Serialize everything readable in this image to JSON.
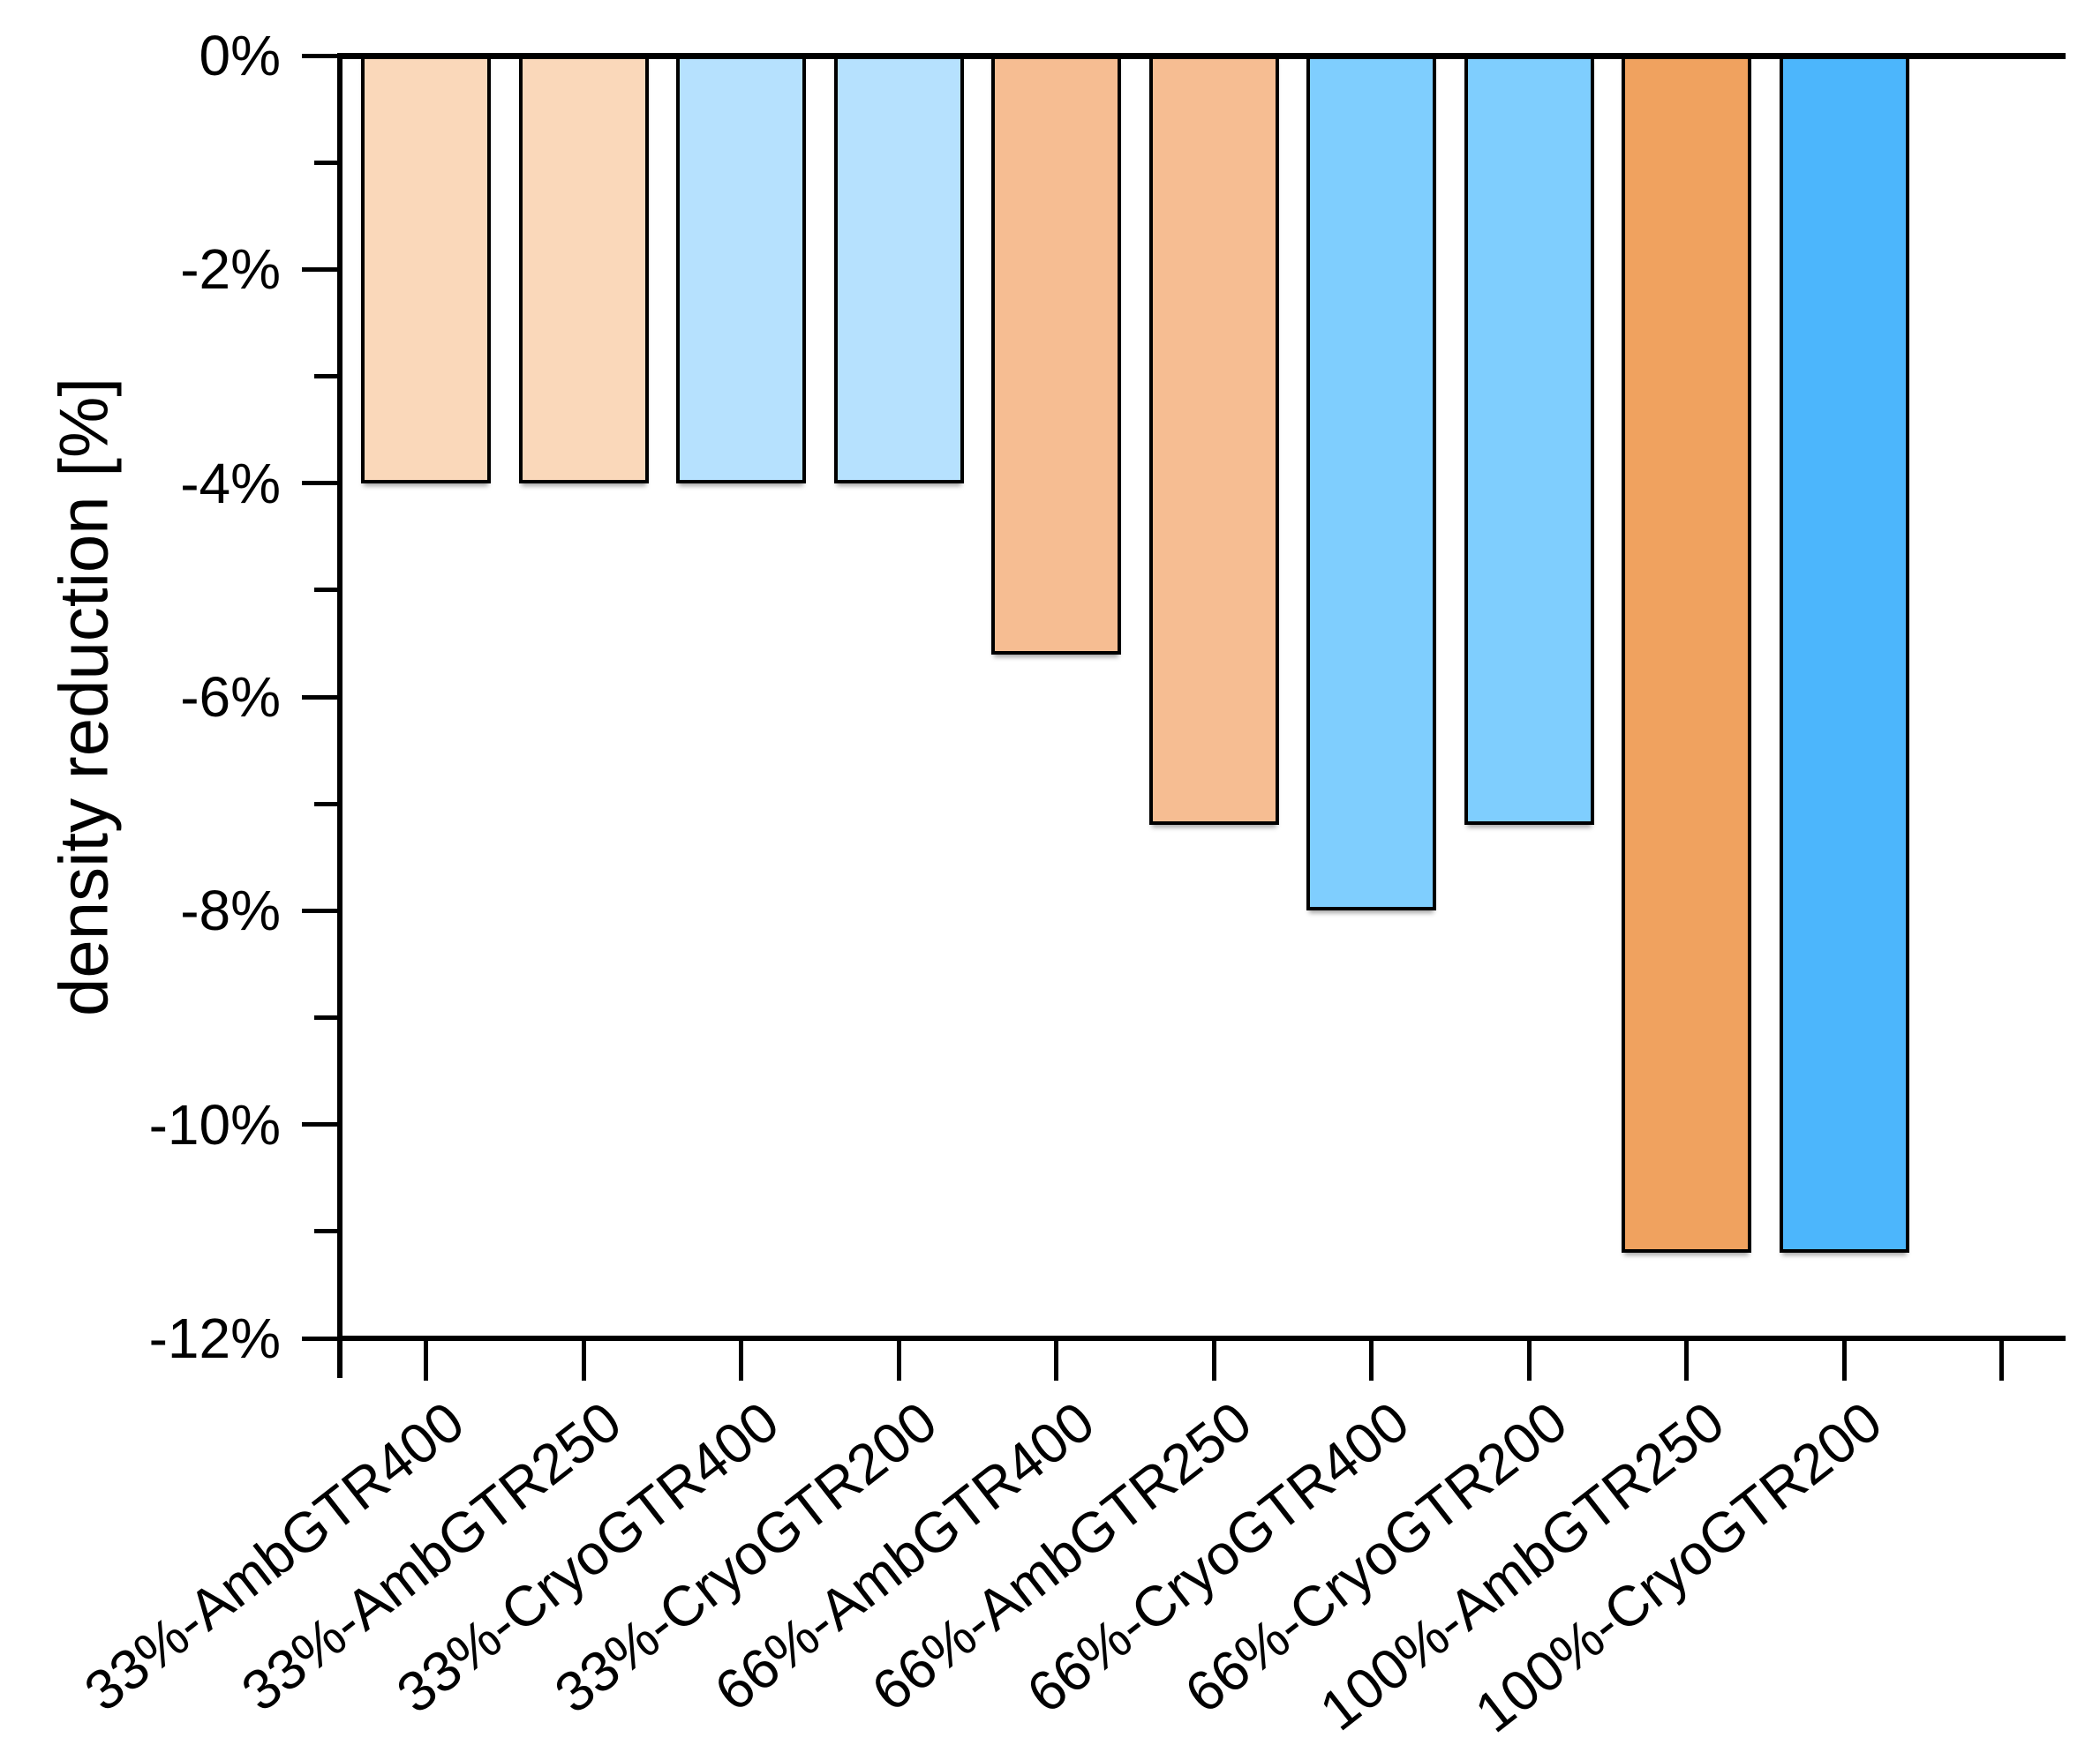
{
  "chart_data": {
    "type": "bar",
    "title": "",
    "xlabel": "",
    "ylabel": "density reduction [%]",
    "categories": [
      "33%-AmbGTR400",
      "33%-AmbGTR250",
      "33%-CryoGTR400",
      "33%-CryoGTR200",
      "66%-AmbGTR400",
      "66%-AmbGTR250",
      "66%-CryoGTR400",
      "66%-CryoGTR200",
      "100%-AmbGTR250",
      "100%-CryoGTR200"
    ],
    "values": [
      -4.0,
      -4.0,
      -4.0,
      -4.0,
      -5.6,
      -7.2,
      -8.0,
      -7.2,
      -11.2,
      -11.2
    ],
    "bar_colors": [
      "#FAD8BA",
      "#FAD8BA",
      "#B6E1FE",
      "#B6E1FE",
      "#F6BD92",
      "#F6BD92",
      "#7FCEFE",
      "#7FCEFE",
      "#F0A25F",
      "#4CB6FC"
    ],
    "bar_edge_color": "#000000",
    "axis_color": "#000000",
    "background_color": "#ffffff",
    "ylim": [
      -12,
      0
    ],
    "ytick_major": [
      {
        "value": 0,
        "label": "0%"
      },
      {
        "value": -2,
        "label": "-2%"
      },
      {
        "value": -4,
        "label": "-4%"
      },
      {
        "value": -6,
        "label": "-6%"
      },
      {
        "value": -8,
        "label": "-8%"
      },
      {
        "value": -10,
        "label": "-10%"
      },
      {
        "value": -12,
        "label": "-12%"
      }
    ],
    "ytick_minor": [
      -1,
      -3,
      -5,
      -7,
      -9,
      -11
    ],
    "x_extra_unlabeled_tick": true,
    "xtick_rotation_deg": 38,
    "grid": false,
    "legend": null
  }
}
